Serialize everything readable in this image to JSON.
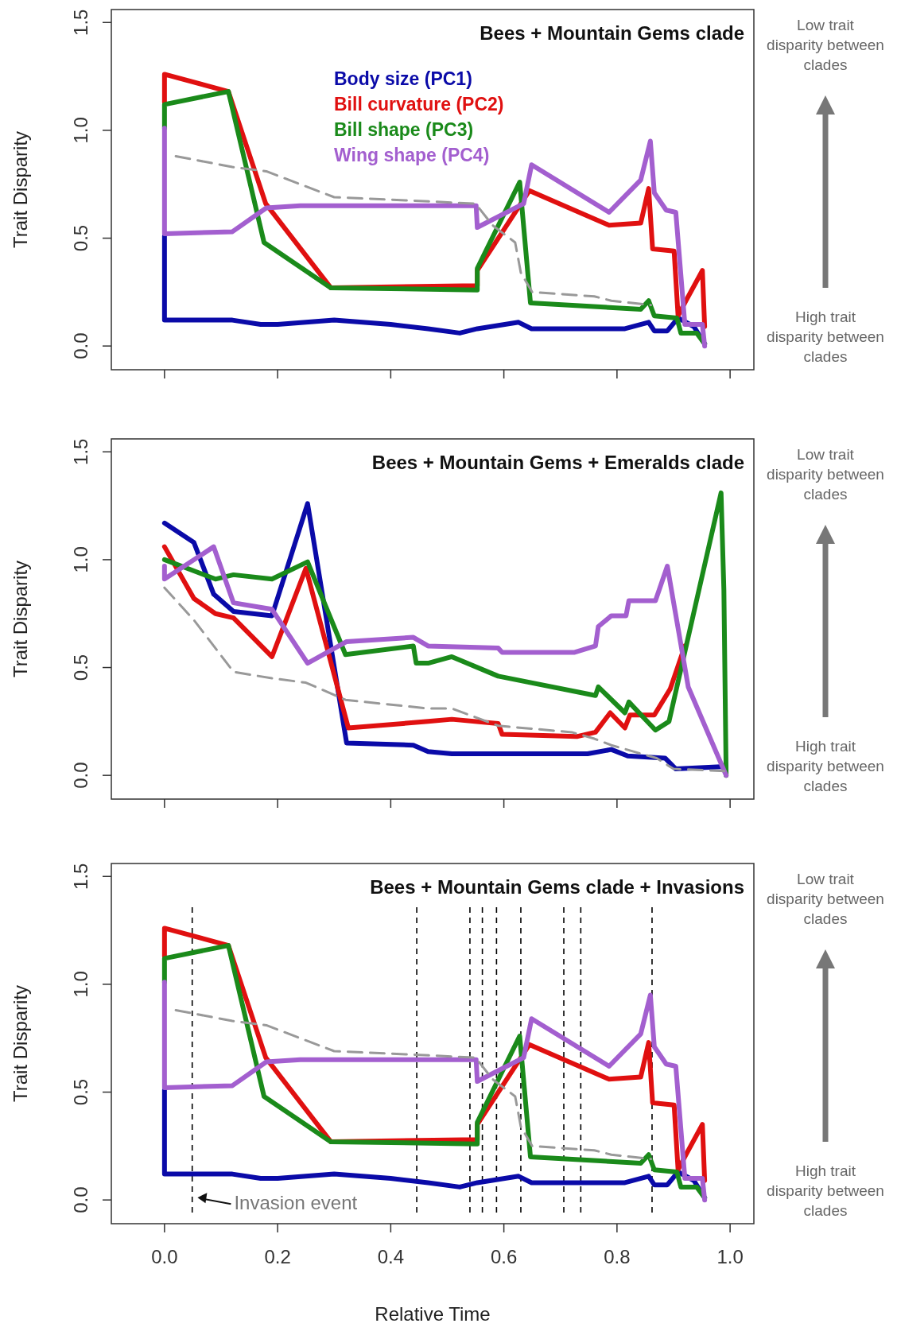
{
  "chart_data": [
    {
      "type": "line",
      "title": "Bees + Mountain Gems clade",
      "ylabel": "Trait Disparity",
      "xlim": [
        -0.094,
        1.042
      ],
      "ylim": [
        -0.11,
        1.56
      ],
      "xticks": [
        {
          "value": 0,
          "label": null
        },
        {
          "value": 0.2,
          "label": null
        },
        {
          "value": 0.4,
          "label": null
        },
        {
          "value": 0.6,
          "label": null
        },
        {
          "value": 0.8,
          "label": null
        },
        {
          "value": 1,
          "label": null
        }
      ],
      "yticks": [
        {
          "value": 0,
          "label": "0.0"
        },
        {
          "value": 0.5,
          "label": "0.5"
        },
        {
          "value": 1,
          "label": "1.0"
        },
        {
          "value": 1.5,
          "label": "1.5"
        }
      ],
      "tick_labels": "y",
      "legend": "top",
      "annotations": [
        "Low trait disparity between clades",
        "High trait disparity between clades"
      ],
      "series": [
        {
          "name": "Body size (PC1)",
          "color": "#0a0aa8",
          "x": [
            0,
            0,
            0.12,
            0.17,
            0.2,
            0.3,
            0.4,
            0.466,
            0.522,
            0.553,
            0.626,
            0.649,
            0.814,
            0.856,
            0.866,
            0.889,
            0.908,
            0.936,
            0.955
          ],
          "values": [
            0.51,
            0.12,
            0.12,
            0.1,
            0.1,
            0.12,
            0.1,
            0.08,
            0.06,
            0.08,
            0.11,
            0.08,
            0.08,
            0.11,
            0.07,
            0.07,
            0.13,
            0.09,
            0.01
          ]
        },
        {
          "name": "Bill curvature (PC2)",
          "color": "#e01010",
          "x": [
            0,
            0,
            0.113,
            0.179,
            0.294,
            0.553,
            0.553,
            0.645,
            0.786,
            0.842,
            0.856,
            0.863,
            0.901,
            0.908,
            0.922,
            0.951,
            0.955
          ],
          "values": [
            1.13,
            1.26,
            1.18,
            0.66,
            0.27,
            0.28,
            0.35,
            0.72,
            0.56,
            0.57,
            0.73,
            0.45,
            0.44,
            0.14,
            0.21,
            0.35,
            0.09
          ]
        },
        {
          "name": "Bill shape (PC3)",
          "color": "#1a8a1a",
          "x": [
            0,
            0,
            0.113,
            0.176,
            0.294,
            0.553,
            0.553,
            0.628,
            0.647,
            0.842,
            0.856,
            0.866,
            0.906,
            0.913,
            0.941,
            0.955
          ],
          "values": [
            1.01,
            1.12,
            1.18,
            0.48,
            0.27,
            0.26,
            0.36,
            0.76,
            0.2,
            0.17,
            0.21,
            0.14,
            0.13,
            0.06,
            0.06,
            0.01
          ]
        },
        {
          "name": "Wing shape (PC4)",
          "color": "#a35fcf",
          "x": [
            0,
            0,
            0.12,
            0.18,
            0.24,
            0.551,
            0.553,
            0.635,
            0.649,
            0.786,
            0.842,
            0.859,
            0.866,
            0.887,
            0.904,
            0.92,
            0.951,
            0.955
          ],
          "values": [
            1.01,
            0.52,
            0.53,
            0.64,
            0.65,
            0.65,
            0.55,
            0.66,
            0.84,
            0.62,
            0.77,
            0.95,
            0.71,
            0.63,
            0.62,
            0.1,
            0.1,
            0
          ]
        },
        {
          "color": "#999999",
          "line_style": "dashed",
          "x": [
            0.02,
            0.12,
            0.18,
            0.3,
            0.47,
            0.55,
            0.58,
            0.62,
            0.63,
            0.65,
            0.76,
            0.79,
            0.86
          ],
          "values": [
            0.88,
            0.83,
            0.81,
            0.69,
            0.67,
            0.66,
            0.56,
            0.48,
            0.34,
            0.25,
            0.23,
            0.21,
            0.19
          ]
        }
      ]
    },
    {
      "type": "line",
      "title": "Bees + Mountain Gems + Emeralds clade",
      "ylabel": "Trait Disparity",
      "xlim": [
        -0.094,
        1.042
      ],
      "ylim": [
        -0.11,
        1.56
      ],
      "xticks": [
        {
          "value": 0,
          "label": null
        },
        {
          "value": 0.2,
          "label": null
        },
        {
          "value": 0.4,
          "label": null
        },
        {
          "value": 0.6,
          "label": null
        },
        {
          "value": 0.8,
          "label": null
        },
        {
          "value": 1,
          "label": null
        }
      ],
      "yticks": [
        {
          "value": 0,
          "label": "0.0"
        },
        {
          "value": 0.5,
          "label": "0.5"
        },
        {
          "value": 1,
          "label": "1.0"
        },
        {
          "value": 1.5,
          "label": "1.5"
        }
      ],
      "tick_labels": "y",
      "annotations": [
        "Low trait disparity between clades",
        "High trait disparity between clades"
      ],
      "series": [
        {
          "color": "#0a0aa8",
          "x": [
            0,
            0.052,
            0.087,
            0.122,
            0.19,
            0.253,
            0.322,
            0.44,
            0.466,
            0.508,
            0.748,
            0.79,
            0.819,
            0.885,
            0.904,
            0.984
          ],
          "values": [
            1.17,
            1.08,
            0.84,
            0.76,
            0.74,
            1.26,
            0.15,
            0.14,
            0.11,
            0.1,
            0.1,
            0.12,
            0.09,
            0.08,
            0.03,
            0.04
          ]
        },
        {
          "color": "#e01010",
          "x": [
            0,
            0.052,
            0.09,
            0.122,
            0.19,
            0.25,
            0.325,
            0.466,
            0.508,
            0.59,
            0.597,
            0.729,
            0.762,
            0.788,
            0.814,
            0.823,
            0.866,
            0.894,
            0.92
          ],
          "values": [
            1.06,
            0.82,
            0.75,
            0.73,
            0.55,
            0.96,
            0.22,
            0.25,
            0.26,
            0.24,
            0.19,
            0.18,
            0.2,
            0.29,
            0.22,
            0.28,
            0.28,
            0.4,
            0.6
          ]
        },
        {
          "color": "#1a8a1a",
          "x": [
            0,
            0.09,
            0.122,
            0.19,
            0.253,
            0.32,
            0.44,
            0.445,
            0.466,
            0.508,
            0.59,
            0.762,
            0.767,
            0.814,
            0.821,
            0.868,
            0.892,
            0.984,
            0.989,
            0.991,
            0.993
          ],
          "values": [
            1,
            0.91,
            0.93,
            0.91,
            0.99,
            0.56,
            0.6,
            0.52,
            0.52,
            0.55,
            0.46,
            0.37,
            0.41,
            0.29,
            0.34,
            0.21,
            0.25,
            1.31,
            0.86,
            0.43,
            0
          ]
        },
        {
          "color": "#a35fcf",
          "x": [
            0,
            0,
            0.087,
            0.122,
            0.19,
            0.253,
            0.322,
            0.44,
            0.466,
            0.59,
            0.597,
            0.724,
            0.762,
            0.767,
            0.79,
            0.816,
            0.821,
            0.868,
            0.889,
            0.926,
            0.993
          ],
          "values": [
            0.97,
            0.91,
            1.06,
            0.8,
            0.77,
            0.52,
            0.62,
            0.64,
            0.6,
            0.59,
            0.57,
            0.57,
            0.6,
            0.69,
            0.74,
            0.74,
            0.81,
            0.81,
            0.97,
            0.41,
            0
          ]
        },
        {
          "color": "#999999",
          "line_style": "dashed",
          "x": [
            0,
            0.052,
            0.122,
            0.19,
            0.25,
            0.32,
            0.466,
            0.508,
            0.59,
            0.72,
            0.76,
            0.79,
            0.87,
            0.9,
            0.99
          ],
          "values": [
            0.87,
            0.72,
            0.48,
            0.45,
            0.43,
            0.35,
            0.31,
            0.31,
            0.23,
            0.2,
            0.17,
            0.14,
            0.08,
            0.03,
            0.02
          ]
        }
      ]
    },
    {
      "type": "line",
      "title": "Bees + Mountain Gems clade + Invasions",
      "xlabel": "Relative Time",
      "ylabel": "Trait Disparity",
      "xlim": [
        -0.094,
        1.042
      ],
      "ylim": [
        -0.11,
        1.56
      ],
      "xticks": [
        {
          "value": 0,
          "label": "0.0"
        },
        {
          "value": 0.2,
          "label": "0.2"
        },
        {
          "value": 0.4,
          "label": "0.4"
        },
        {
          "value": 0.6,
          "label": "0.6"
        },
        {
          "value": 0.8,
          "label": "0.8"
        },
        {
          "value": 1,
          "label": "1.0"
        }
      ],
      "yticks": [
        {
          "value": 0,
          "label": "0.0"
        },
        {
          "value": 0.5,
          "label": "0.5"
        },
        {
          "value": 1,
          "label": "1.0"
        },
        {
          "value": 1.5,
          "label": "1.5"
        }
      ],
      "annotations": [
        "Low trait disparity between clades",
        "High trait disparity between clades",
        {
          "text": "Invasion event",
          "x": 0.05,
          "y": 0
        }
      ],
      "ref_lines": [
        {
          "axis": "x",
          "value": 0.049,
          "color": "#000000",
          "line_style": "dashed"
        },
        {
          "axis": "x",
          "value": 0.446,
          "color": "#000000",
          "line_style": "dashed"
        },
        {
          "axis": "x",
          "value": 0.54,
          "color": "#000000",
          "line_style": "dashed"
        },
        {
          "axis": "x",
          "value": 0.562,
          "color": "#000000",
          "line_style": "dashed"
        },
        {
          "axis": "x",
          "value": 0.587,
          "color": "#000000",
          "line_style": "dashed"
        },
        {
          "axis": "x",
          "value": 0.63,
          "color": "#000000",
          "line_style": "dashed"
        },
        {
          "axis": "x",
          "value": 0.706,
          "color": "#000000",
          "line_style": "dashed"
        },
        {
          "axis": "x",
          "value": 0.736,
          "color": "#000000",
          "line_style": "dashed"
        },
        {
          "axis": "x",
          "value": 0.862,
          "color": "#000000",
          "line_style": "dashed"
        }
      ],
      "series": [
        {
          "color": "#0a0aa8",
          "x": [
            0,
            0,
            0.12,
            0.17,
            0.2,
            0.3,
            0.4,
            0.466,
            0.522,
            0.553,
            0.626,
            0.649,
            0.814,
            0.856,
            0.866,
            0.889,
            0.908,
            0.936,
            0.955
          ],
          "values": [
            0.51,
            0.12,
            0.12,
            0.1,
            0.1,
            0.12,
            0.1,
            0.08,
            0.06,
            0.08,
            0.11,
            0.08,
            0.08,
            0.11,
            0.07,
            0.07,
            0.13,
            0.09,
            0.01
          ]
        },
        {
          "color": "#e01010",
          "x": [
            0,
            0,
            0.113,
            0.179,
            0.294,
            0.553,
            0.553,
            0.645,
            0.786,
            0.842,
            0.856,
            0.863,
            0.901,
            0.908,
            0.922,
            0.951,
            0.955
          ],
          "values": [
            1.13,
            1.26,
            1.18,
            0.66,
            0.27,
            0.28,
            0.35,
            0.72,
            0.56,
            0.57,
            0.73,
            0.45,
            0.44,
            0.14,
            0.21,
            0.35,
            0.09
          ]
        },
        {
          "color": "#1a8a1a",
          "x": [
            0,
            0,
            0.113,
            0.176,
            0.294,
            0.553,
            0.553,
            0.628,
            0.647,
            0.842,
            0.856,
            0.866,
            0.906,
            0.913,
            0.941,
            0.955
          ],
          "values": [
            1.01,
            1.12,
            1.18,
            0.48,
            0.27,
            0.26,
            0.36,
            0.76,
            0.2,
            0.17,
            0.21,
            0.14,
            0.13,
            0.06,
            0.06,
            0.01
          ]
        },
        {
          "color": "#a35fcf",
          "x": [
            0,
            0,
            0.12,
            0.18,
            0.24,
            0.551,
            0.553,
            0.635,
            0.649,
            0.786,
            0.842,
            0.859,
            0.866,
            0.887,
            0.904,
            0.92,
            0.951,
            0.955
          ],
          "values": [
            1.01,
            0.52,
            0.53,
            0.64,
            0.65,
            0.65,
            0.55,
            0.66,
            0.84,
            0.62,
            0.77,
            0.95,
            0.71,
            0.63,
            0.62,
            0.1,
            0.1,
            0
          ]
        },
        {
          "color": "#999999",
          "line_style": "dashed",
          "x": [
            0.02,
            0.12,
            0.18,
            0.3,
            0.47,
            0.55,
            0.58,
            0.62,
            0.63,
            0.65,
            0.76,
            0.79,
            0.86
          ],
          "values": [
            0.88,
            0.83,
            0.81,
            0.69,
            0.67,
            0.66,
            0.56,
            0.48,
            0.34,
            0.25,
            0.23,
            0.21,
            0.19
          ]
        }
      ]
    }
  ]
}
